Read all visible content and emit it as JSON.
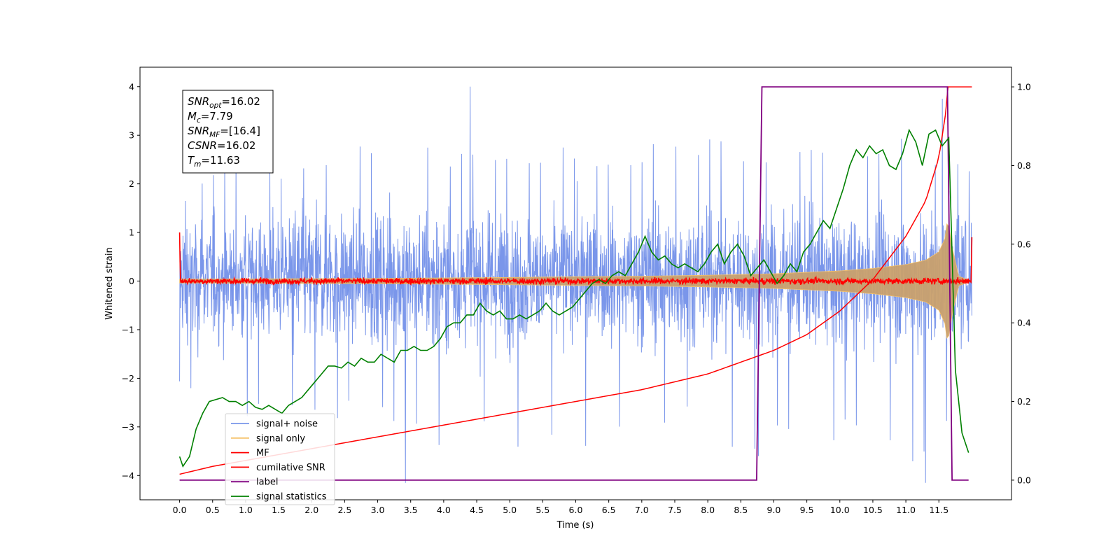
{
  "chart_data": {
    "type": "line",
    "xlabel": "Time (s)",
    "ylabel": "Whitened strain",
    "ylim": [
      -4.5,
      4.4
    ],
    "y2lim": [
      -0.05,
      1.05
    ],
    "xlim": [
      -0.6,
      12.6
    ],
    "xticks": [
      "0.0",
      "0.5",
      "1.0",
      "1.5",
      "2.0",
      "2.5",
      "3.0",
      "3.5",
      "4.0",
      "4.5",
      "5.0",
      "5.5",
      "6.0",
      "6.5",
      "7.0",
      "7.5",
      "8.0",
      "8.5",
      "9.0",
      "9.5",
      "10.0",
      "10.5",
      "11.0",
      "11.5"
    ],
    "yticks": [
      "4",
      "3",
      "2",
      "1",
      "0",
      "−1",
      "−2",
      "−3",
      "−4"
    ],
    "y2ticks": [
      "1.0",
      "0.8",
      "0.6",
      "0.4",
      "0.2",
      "0.0"
    ],
    "annotation": {
      "lines": [
        {
          "base": "SNR",
          "sub": "opt",
          "value": "=16.02"
        },
        {
          "base": "M",
          "sub": "c",
          "value": "=7.79"
        },
        {
          "base": "SNR",
          "sub": "MF",
          "value": "=[16.4]"
        },
        {
          "base": "CSNR",
          "sub": "",
          "value": "=16.02"
        },
        {
          "base": "T",
          "sub": "m",
          "value": "=11.63"
        }
      ]
    },
    "legend_position": "lower-left",
    "legend": [
      {
        "name": "signal+ noise",
        "color": "#4169e1"
      },
      {
        "name": "signal only",
        "color": "#f5c26b"
      },
      {
        "name": "MF",
        "color": "#ff0000"
      },
      {
        "name": "cumilative SNR",
        "color": "#ff0000"
      },
      {
        "name": "label",
        "color": "#800080"
      },
      {
        "name": "signal statistics",
        "color": "#008000"
      }
    ],
    "series": [
      {
        "name": "signal+ noise",
        "color": "#4169e1",
        "axis": "left",
        "x_range": [
          0,
          12.0
        ],
        "envelope_upper": [
          2.1,
          2.3,
          2.6,
          2.4,
          2.7,
          2.5,
          3.0,
          2.6,
          2.8,
          2.7,
          2.9,
          2.6,
          3.1,
          2.8,
          2.7,
          2.9,
          2.8,
          3.2,
          2.7,
          3.0,
          2.8,
          2.9,
          2.7,
          3.4,
          2.6,
          2.5
        ],
        "envelope_lower": [
          -2.1,
          -2.6,
          -2.8,
          -3.0,
          -2.6,
          -2.9,
          -2.7,
          -3.0,
          -3.3,
          -4.15,
          -2.9,
          -3.7,
          -3.1,
          -3.5,
          -3.2,
          -3.3,
          -3.0,
          -3.4,
          -3.6,
          -3.3,
          -3.5,
          -3.2,
          -3.6,
          -4.15,
          -3.3,
          -2.3
        ],
        "peaks": [
          [
            4.4,
            4.0
          ],
          [
            3.42,
            -4.15
          ],
          [
            11.3,
            -4.15
          ],
          [
            8.77,
            -3.6
          ],
          [
            11.55,
            3.75
          ]
        ]
      },
      {
        "name": "signal only",
        "color": "#f5c26b",
        "axis": "left",
        "x": [
          0.0,
          1.0,
          2.0,
          3.0,
          4.0,
          5.0,
          6.0,
          7.0,
          8.0,
          9.0,
          9.5,
          10.0,
          10.5,
          11.0,
          11.3,
          11.5,
          11.6,
          11.63,
          11.7,
          11.8,
          11.95
        ],
        "amplitude": [
          0.04,
          0.045,
          0.05,
          0.055,
          0.065,
          0.075,
          0.09,
          0.1,
          0.12,
          0.15,
          0.18,
          0.21,
          0.26,
          0.34,
          0.43,
          0.6,
          0.9,
          1.3,
          0.7,
          0.1,
          0.02
        ]
      },
      {
        "name": "MF",
        "color": "#ff0000",
        "axis": "left",
        "x_range": [
          0,
          12.0
        ],
        "baseline": 0.0,
        "noise_amplitude": 0.12,
        "edge_values": [
          1.0,
          0.9
        ]
      },
      {
        "name": "cumilative SNR",
        "color": "#ff0000",
        "axis": "right",
        "x": [
          0.0,
          0.5,
          1.0,
          1.5,
          2.0,
          2.5,
          3.0,
          3.5,
          4.0,
          4.5,
          5.0,
          5.5,
          6.0,
          6.5,
          7.0,
          7.5,
          8.0,
          8.5,
          9.0,
          9.5,
          10.0,
          10.5,
          11.0,
          11.3,
          11.5,
          11.6,
          11.63,
          12.0
        ],
        "values": [
          0.015,
          0.035,
          0.05,
          0.065,
          0.08,
          0.095,
          0.11,
          0.125,
          0.14,
          0.155,
          0.17,
          0.185,
          0.2,
          0.215,
          0.23,
          0.25,
          0.27,
          0.3,
          0.33,
          0.37,
          0.43,
          0.51,
          0.62,
          0.71,
          0.82,
          0.93,
          1.0,
          1.0
        ]
      },
      {
        "name": "label",
        "color": "#800080",
        "axis": "right",
        "x": [
          0.0,
          8.74,
          8.82,
          11.63,
          11.7,
          11.95
        ],
        "values": [
          0.0,
          0.0,
          1.0,
          1.0,
          0.0,
          0.0
        ]
      },
      {
        "name": "signal statistics",
        "color": "#008000",
        "axis": "right",
        "x": [
          0.0,
          0.05,
          0.15,
          0.25,
          0.35,
          0.45,
          0.55,
          0.65,
          0.75,
          0.85,
          0.95,
          1.05,
          1.15,
          1.25,
          1.35,
          1.45,
          1.55,
          1.65,
          1.75,
          1.85,
          1.95,
          2.05,
          2.15,
          2.25,
          2.35,
          2.45,
          2.55,
          2.65,
          2.75,
          2.85,
          2.95,
          3.05,
          3.15,
          3.25,
          3.35,
          3.45,
          3.55,
          3.65,
          3.75,
          3.85,
          3.95,
          4.05,
          4.15,
          4.25,
          4.35,
          4.45,
          4.55,
          4.65,
          4.75,
          4.85,
          4.95,
          5.05,
          5.15,
          5.25,
          5.35,
          5.45,
          5.55,
          5.65,
          5.75,
          5.85,
          5.95,
          6.05,
          6.15,
          6.25,
          6.35,
          6.45,
          6.55,
          6.65,
          6.75,
          6.85,
          6.95,
          7.05,
          7.15,
          7.25,
          7.35,
          7.45,
          7.55,
          7.65,
          7.75,
          7.85,
          7.95,
          8.05,
          8.15,
          8.25,
          8.35,
          8.45,
          8.55,
          8.65,
          8.75,
          8.85,
          8.95,
          9.05,
          9.15,
          9.25,
          9.35,
          9.45,
          9.55,
          9.65,
          9.75,
          9.85,
          9.95,
          10.05,
          10.15,
          10.25,
          10.35,
          10.45,
          10.55,
          10.65,
          10.75,
          10.85,
          10.95,
          11.05,
          11.15,
          11.25,
          11.35,
          11.45,
          11.55,
          11.65,
          11.75,
          11.85,
          11.95
        ],
        "values": [
          0.06,
          0.035,
          0.06,
          0.13,
          0.17,
          0.2,
          0.205,
          0.21,
          0.2,
          0.2,
          0.19,
          0.2,
          0.185,
          0.18,
          0.19,
          0.18,
          0.17,
          0.19,
          0.2,
          0.21,
          0.23,
          0.25,
          0.27,
          0.29,
          0.29,
          0.285,
          0.3,
          0.29,
          0.31,
          0.3,
          0.3,
          0.32,
          0.31,
          0.3,
          0.33,
          0.33,
          0.34,
          0.33,
          0.33,
          0.34,
          0.36,
          0.39,
          0.4,
          0.4,
          0.42,
          0.42,
          0.45,
          0.43,
          0.42,
          0.43,
          0.41,
          0.41,
          0.42,
          0.41,
          0.42,
          0.43,
          0.45,
          0.43,
          0.42,
          0.43,
          0.44,
          0.46,
          0.48,
          0.5,
          0.51,
          0.5,
          0.52,
          0.53,
          0.52,
          0.55,
          0.58,
          0.62,
          0.58,
          0.56,
          0.57,
          0.55,
          0.54,
          0.55,
          0.54,
          0.53,
          0.55,
          0.58,
          0.6,
          0.55,
          0.58,
          0.6,
          0.57,
          0.52,
          0.54,
          0.56,
          0.53,
          0.5,
          0.52,
          0.55,
          0.53,
          0.58,
          0.6,
          0.63,
          0.66,
          0.64,
          0.69,
          0.74,
          0.8,
          0.84,
          0.82,
          0.85,
          0.83,
          0.84,
          0.8,
          0.79,
          0.83,
          0.89,
          0.86,
          0.8,
          0.88,
          0.89,
          0.85,
          0.87,
          0.28,
          0.12,
          0.07
        ]
      }
    ]
  }
}
